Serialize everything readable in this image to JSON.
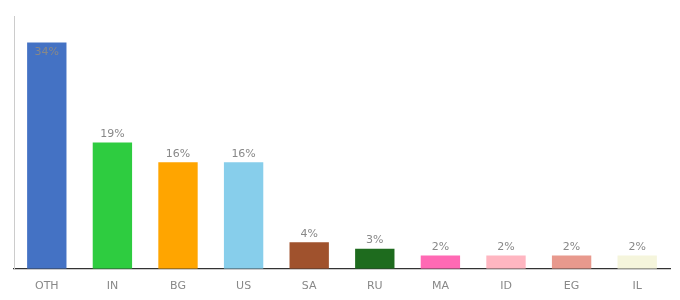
{
  "chart_data": {
    "type": "bar",
    "categories": [
      "OTH",
      "IN",
      "BG",
      "US",
      "SA",
      "RU",
      "MA",
      "ID",
      "EG",
      "IL"
    ],
    "values": [
      34,
      19,
      16,
      16,
      4,
      3,
      2,
      2,
      2,
      2
    ],
    "value_labels": [
      "34%",
      "19%",
      "16%",
      "16%",
      "4%",
      "3%",
      "2%",
      "2%",
      "2%",
      "2%"
    ],
    "colors": [
      "#4472C4",
      "#2ECC40",
      "#FFA500",
      "#87CEEB",
      "#A0522D",
      "#1E6B1E",
      "#FF69B4",
      "#FFB6C1",
      "#E8998D",
      "#F5F5DC"
    ],
    "ylim": [
      0,
      38
    ],
    "grid": false,
    "data_labels": true,
    "tick_labels": "x"
  }
}
